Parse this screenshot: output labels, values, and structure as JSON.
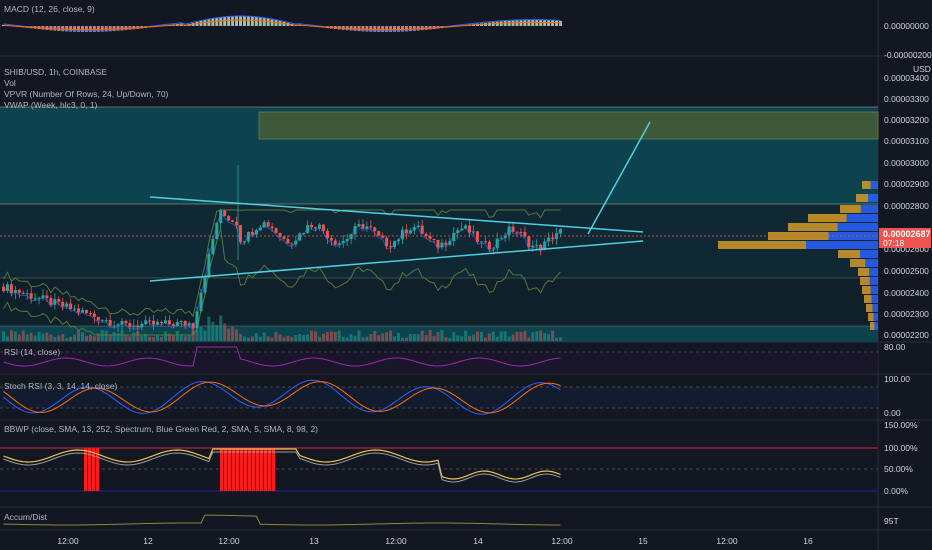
{
  "panes": {
    "macd": {
      "label": "MACD (12, 26, close, 9)",
      "axis": [
        "0.00000000",
        "-0.00000200"
      ]
    },
    "main": {
      "symbol_label": "SHIB/USD, 1h, COINBASE",
      "indicators": [
        "Vol",
        "VPVR (Number Of Rows, 24, Up/Down, 70)",
        "VWAP (Week, hlc3, 0, 1)"
      ],
      "axis": [
        "0.00003400",
        "0.00003300",
        "0.00003200",
        "0.00003100",
        "0.00003000",
        "0.00002900",
        "0.00002800",
        "0.00002600",
        "0.00002500",
        "0.00002400",
        "0.00002300",
        "0.00002200"
      ],
      "axis_top_label": "USD",
      "price_tag": "0.00002687",
      "countdown": "07:18"
    },
    "rsi": {
      "label": "RSI (14, close)",
      "axis": [
        "80.00"
      ]
    },
    "stoch": {
      "label": "Stoch RSI (3, 3, 14, 14, close)",
      "axis": [
        "100.00",
        "0.00"
      ]
    },
    "bbwp": {
      "label": "BBWP (close, SMA, 13, 252, Spectrum, Blue Green Red, 2, SMA, 5, SMA, 8, 98, 2)",
      "axis": [
        "150.00%",
        "100.00%",
        "50.00%",
        "0.00%"
      ]
    },
    "accum": {
      "label": "Accum/Dist",
      "axis": [
        "95T"
      ]
    }
  },
  "time_axis": [
    "12:00",
    "12",
    "12:00",
    "13",
    "12:00",
    "14",
    "12:00",
    "15",
    "12:00",
    "16"
  ],
  "colors": {
    "background": "#131722",
    "up": "#26a69a",
    "down": "#ef5350",
    "line": "#4dd0e1",
    "zone": "#0f4c5c",
    "supply": "#6b6a2a"
  },
  "chart_data": {
    "type": "candlestick",
    "symbol": "SHIB/USD",
    "interval": "1h",
    "price_axis_range": [
      2.2e-05,
      3.4e-05
    ],
    "last_price": 2.687e-05,
    "candles_approx": [
      {
        "phase": "downtrend",
        "start": 2.44e-05,
        "end": 2.2e-05
      },
      {
        "phase": "spike",
        "start": 2.26e-05,
        "end": 2.81e-05
      },
      {
        "phase": "consolidation_triangle",
        "high": 2.8e-05,
        "low": 2.61e-05,
        "end": 2.687e-05
      }
    ],
    "indicators": {
      "rsi_level": 80,
      "stoch_range": [
        0,
        100
      ],
      "bbwp_levels": [
        0,
        50,
        100,
        150
      ]
    }
  }
}
